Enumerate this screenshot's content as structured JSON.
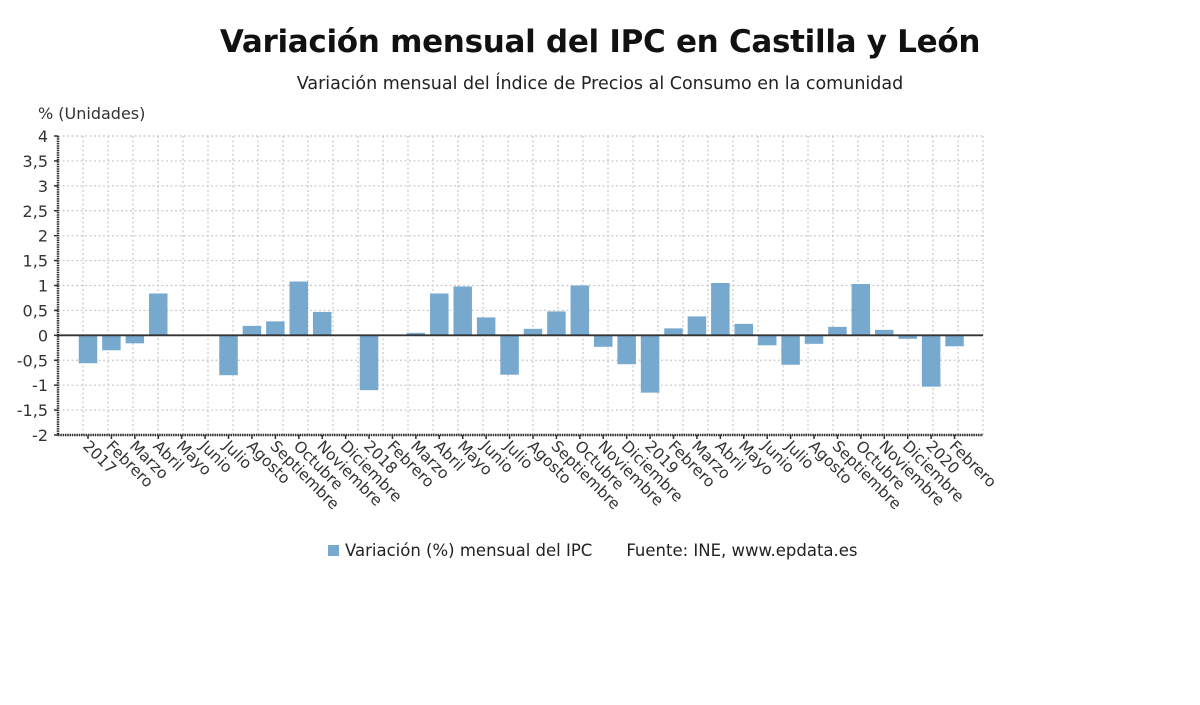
{
  "chart_data": {
    "type": "bar",
    "title": "Variación mensual del IPC en Castilla y León",
    "subtitle": "Variación mensual del Índice de Precios al Consumo en la comunidad",
    "ylabel": "% (Unidades)",
    "xlabel": "",
    "ylim": [
      -2,
      4
    ],
    "yticks": [
      4,
      3.5,
      3,
      2.5,
      2,
      1.5,
      1,
      0.5,
      0,
      -0.5,
      -1,
      -1.5,
      -2
    ],
    "ytick_labels": [
      "4",
      "3,5",
      "3",
      "2,5",
      "2",
      "1,5",
      "1",
      "0,5",
      "0",
      "-0,5",
      "-1",
      "-1,5",
      "-2"
    ],
    "grid": true,
    "legend_position": "bottom",
    "categories": [
      "2017",
      "Febrero",
      "Marzo",
      "Abril",
      "Mayo",
      "Junio",
      "Julio",
      "Agosto",
      "Septiembre",
      "Octubre",
      "Noviembre",
      "Diciembre",
      "2018",
      "Febrero",
      "Marzo",
      "Abril",
      "Mayo",
      "Junio",
      "Julio",
      "Agosto",
      "Septiembre",
      "Octubre",
      "Noviembre",
      "Diciembre",
      "2019",
      "Febrero",
      "Marzo",
      "Abril",
      "Mayo",
      "Junio",
      "Julio",
      "Agosto",
      "Septiembre",
      "Octubre",
      "Noviembre",
      "Diciembre",
      "2020",
      "Febrero"
    ],
    "series": [
      {
        "name": "Variación (%) mensual del IPC",
        "color": "#77a9cf",
        "values": [
          -0.56,
          -0.3,
          -0.16,
          0.84,
          0.0,
          -0.01,
          -0.8,
          0.19,
          0.28,
          1.08,
          0.47,
          0.0,
          -1.1,
          0.0,
          0.05,
          0.84,
          0.98,
          0.36,
          -0.79,
          0.13,
          0.48,
          1.0,
          -0.23,
          -0.58,
          -1.15,
          0.14,
          0.38,
          1.05,
          0.23,
          -0.2,
          -0.59,
          -0.17,
          0.17,
          1.03,
          0.11,
          -0.07,
          -1.03,
          -0.22
        ]
      }
    ],
    "source": "Fuente: INE, www.epdata.es"
  }
}
